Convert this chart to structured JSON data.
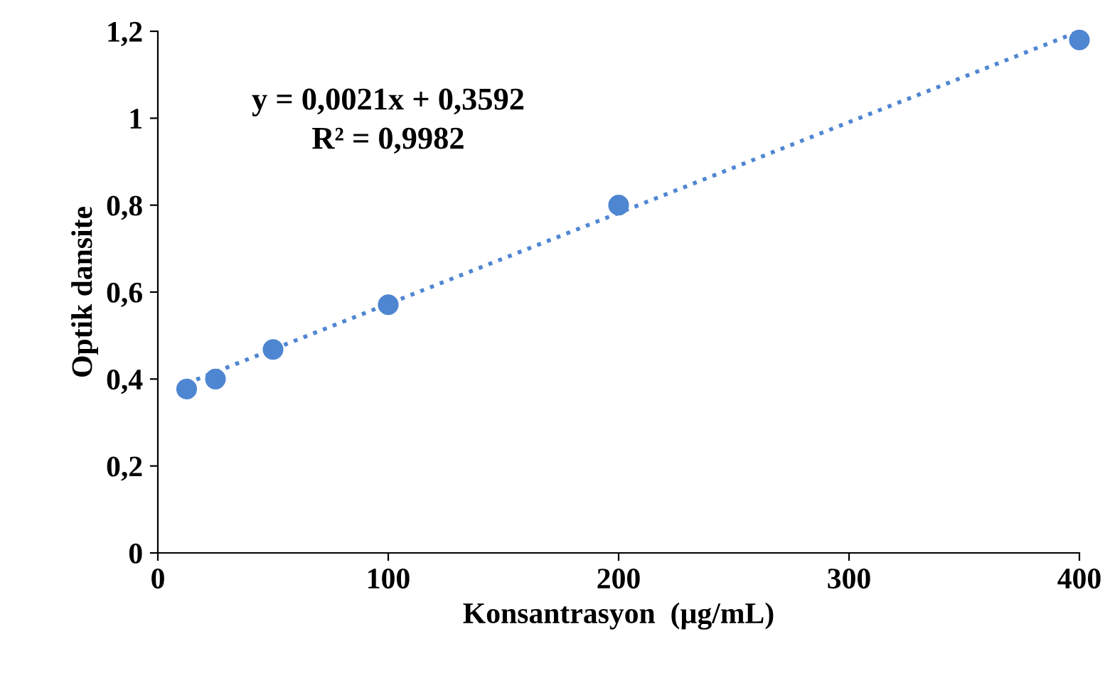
{
  "chart_data": {
    "type": "scatter",
    "xlabel": "Konsantrasyon  (µg/mL)",
    "ylabel": "Optik dansite",
    "x": [
      12.5,
      25,
      50,
      100,
      200,
      400
    ],
    "series": [
      {
        "color": "#4f86d1",
        "values": [
          0.377,
          0.4,
          0.468,
          0.571,
          0.8,
          1.18
        ],
        "marker": "circle"
      },
      {
        "type": "line",
        "color": "#4f86d1",
        "x": [
          12.5,
          400
        ],
        "values": [
          0.39,
          1.2
        ],
        "line_style": "dotted",
        "marker": "none"
      }
    ],
    "annotations": [
      "y = 0,0021x + 0,3592",
      "R² = 0,9982"
    ],
    "xlim": [
      0,
      400
    ],
    "xticks": [
      {
        "value": 0,
        "label": "0"
      },
      {
        "value": 100,
        "label": "100"
      },
      {
        "value": 200,
        "label": "200"
      },
      {
        "value": 300,
        "label": "300"
      },
      {
        "value": 400,
        "label": "400"
      }
    ],
    "ylim": [
      0,
      1.2
    ],
    "yticks": [
      {
        "value": 0,
        "label": "0"
      },
      {
        "value": 0.2,
        "label": "0,2"
      },
      {
        "value": 0.4,
        "label": "0,4"
      },
      {
        "value": 0.6,
        "label": "0,6"
      },
      {
        "value": 0.8,
        "label": "0,8"
      },
      {
        "value": 1,
        "label": "1"
      },
      {
        "value": 1.2,
        "label": "1,2"
      }
    ],
    "grid": false,
    "legend": false
  }
}
